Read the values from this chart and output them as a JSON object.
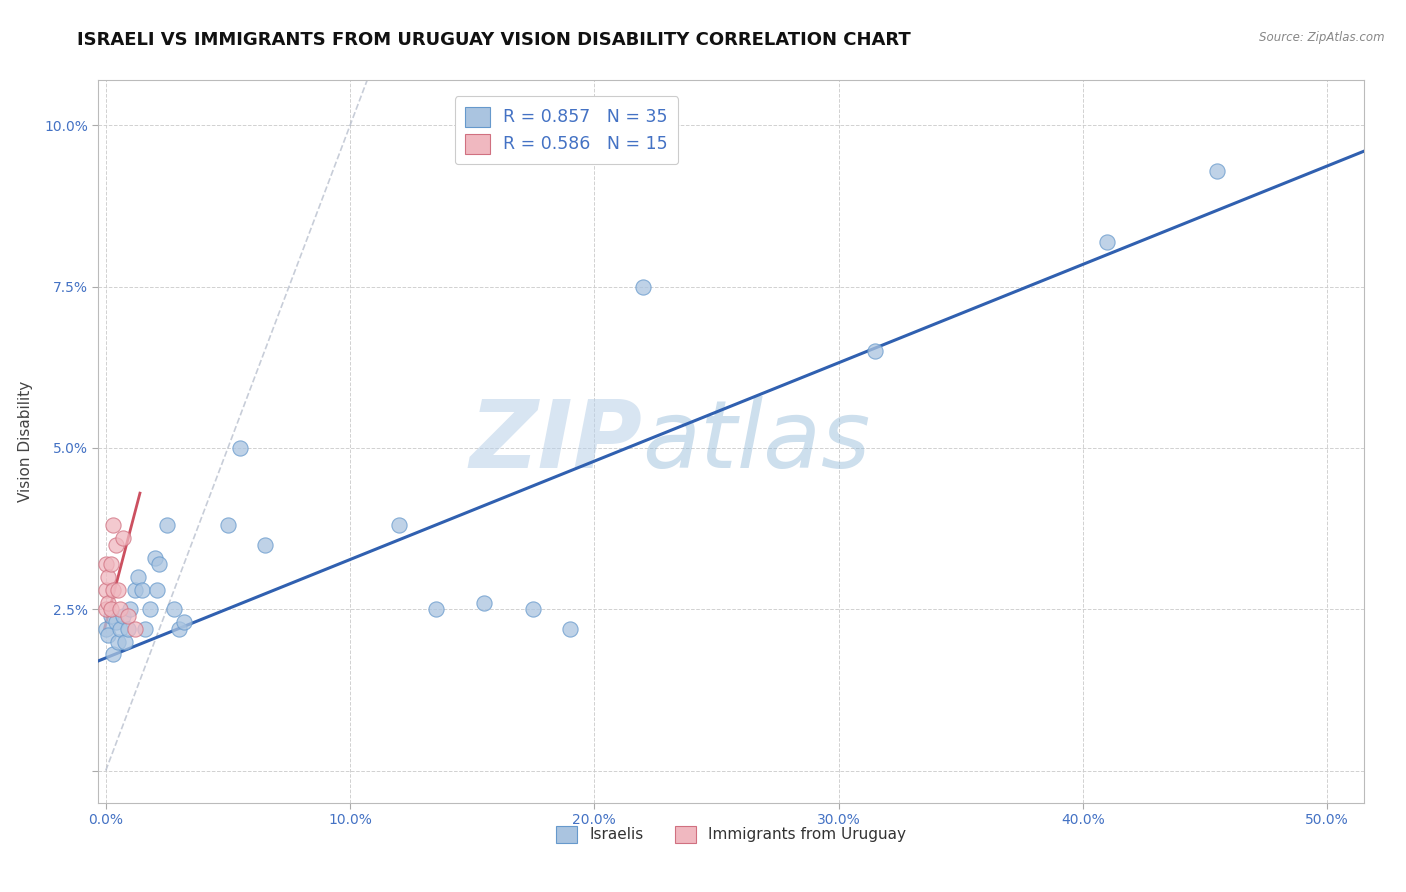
{
  "title": "ISRAELI VS IMMIGRANTS FROM URUGUAY VISION DISABILITY CORRELATION CHART",
  "source": "Source: ZipAtlas.com",
  "ylabel": "Vision Disability",
  "xlabel": "",
  "xlim": [
    -0.003,
    0.515
  ],
  "ylim": [
    -0.005,
    0.107
  ],
  "xticks": [
    0.0,
    0.1,
    0.2,
    0.3,
    0.4,
    0.5
  ],
  "xtick_labels": [
    "0.0%",
    "10.0%",
    "20.0%",
    "30.0%",
    "40.0%",
    "50.0%"
  ],
  "yticks": [
    0.0,
    0.025,
    0.05,
    0.075,
    0.1
  ],
  "ytick_labels": [
    "",
    "2.5%",
    "5.0%",
    "7.5%",
    "10.0%"
  ],
  "legend_israelis": "Israelis",
  "legend_uruguay": "Immigrants from Uruguay",
  "R_israelis": 0.857,
  "N_israelis": 35,
  "R_uruguay": 0.586,
  "N_uruguay": 15,
  "israelis_color": "#aac4e0",
  "israelis_edge": "#6699cc",
  "uruguay_color": "#f0b8c0",
  "uruguay_edge": "#d07080",
  "line_israelis_color": "#3060b0",
  "line_uruguay_color": "#cc5060",
  "ref_line_color": "#b0b8c8",
  "watermark_color": "#ccddf0",
  "title_fontsize": 13,
  "axis_label_fontsize": 11,
  "tick_fontsize": 10,
  "tick_color": "#4472c4",
  "israelis_x": [
    0.0,
    0.001,
    0.002,
    0.003,
    0.004,
    0.005,
    0.006,
    0.007,
    0.008,
    0.009,
    0.01,
    0.012,
    0.013,
    0.015,
    0.016,
    0.018,
    0.02,
    0.021,
    0.022,
    0.025,
    0.028,
    0.03,
    0.032,
    0.05,
    0.055,
    0.065,
    0.12,
    0.135,
    0.155,
    0.175,
    0.19,
    0.22,
    0.315,
    0.41,
    0.455
  ],
  "israelis_y": [
    0.022,
    0.021,
    0.024,
    0.018,
    0.023,
    0.02,
    0.022,
    0.024,
    0.02,
    0.022,
    0.025,
    0.028,
    0.03,
    0.028,
    0.022,
    0.025,
    0.033,
    0.028,
    0.032,
    0.038,
    0.025,
    0.022,
    0.023,
    0.038,
    0.05,
    0.035,
    0.038,
    0.025,
    0.026,
    0.025,
    0.022,
    0.075,
    0.065,
    0.082,
    0.093
  ],
  "uruguay_x": [
    0.0,
    0.0,
    0.0,
    0.001,
    0.001,
    0.002,
    0.002,
    0.003,
    0.003,
    0.004,
    0.005,
    0.006,
    0.007,
    0.009,
    0.012
  ],
  "uruguay_y": [
    0.025,
    0.028,
    0.032,
    0.026,
    0.03,
    0.025,
    0.032,
    0.038,
    0.028,
    0.035,
    0.028,
    0.025,
    0.036,
    0.024,
    0.022
  ],
  "isr_line_x0": -0.003,
  "isr_line_x1": 0.515,
  "isr_line_y0": 0.017,
  "isr_line_y1": 0.096,
  "uru_line_x0": -0.0005,
  "uru_line_x1": 0.014,
  "uru_line_y0": 0.022,
  "uru_line_y1": 0.043,
  "ref_line_x0": 0.0,
  "ref_line_x1": 0.107,
  "ref_line_y0": 0.0,
  "ref_line_y1": 0.107
}
